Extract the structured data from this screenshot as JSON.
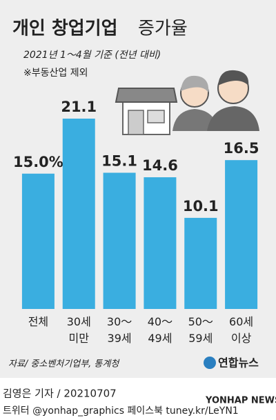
{
  "chart_data": {
    "type": "bar",
    "title": "개인 창업기업",
    "title_light": "증가율",
    "subtitle": "2021년 1～4월 기준 (전년 대비)",
    "note": "※부동산업 제외",
    "categories": [
      "전체",
      "30세\n미만",
      "30～\n39세",
      "40～\n49세",
      "50～\n59세",
      "60세\n이상"
    ],
    "values": [
      15.0,
      21.1,
      15.1,
      14.6,
      10.1,
      16.5
    ],
    "value_labels": [
      "15.0%",
      "21.1",
      "15.1",
      "14.6",
      "10.1",
      "16.5"
    ],
    "color": "#3aaee0",
    "source": "자료/ 중소벤처기업부, 통계청",
    "logo": "연합뉴스",
    "byline": "김영은 기자 / 20210707",
    "social": "트위터 @yonhap_graphics  페이스북 tuney.kr/LeYN1",
    "watermark": "YONHAP NEWS"
  }
}
